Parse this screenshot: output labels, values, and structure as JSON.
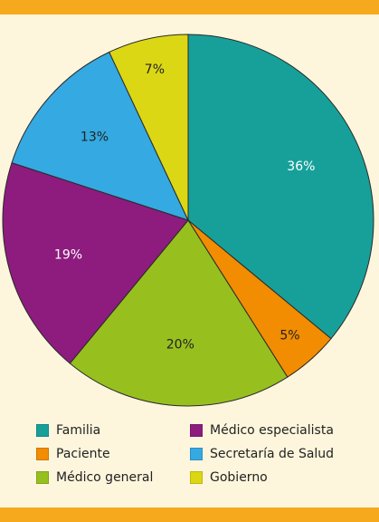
{
  "chart_data": {
    "type": "pie",
    "title": "",
    "start_angle_deg": 0,
    "direction": "clockwise",
    "slices": [
      {
        "name": "Familia",
        "value": 36,
        "label": "36%",
        "color": "#17a09a",
        "label_color": "#ffffff"
      },
      {
        "name": "Paciente",
        "value": 5,
        "label": "5%",
        "color": "#f28c00",
        "label_color": "#222222"
      },
      {
        "name": "Médico general",
        "value": 20,
        "label": "20%",
        "color": "#97c01f",
        "label_color": "#222222"
      },
      {
        "name": "Médico especialista",
        "value": 19,
        "label": "19%",
        "color": "#8d1c7e",
        "label_color": "#ffffff"
      },
      {
        "name": "Secretaría de Salud",
        "value": 13,
        "label": "13%",
        "color": "#35a9e1",
        "label_color": "#222222"
      },
      {
        "name": "Gobierno",
        "value": 7,
        "label": "7%",
        "color": "#dcd715",
        "label_color": "#222222"
      }
    ],
    "legend_placement": "bottom"
  },
  "legend": {
    "items": [
      {
        "label": "Familia",
        "color": "#17a09a"
      },
      {
        "label": "Médico especialista",
        "color": "#8d1c7e"
      },
      {
        "label": "Paciente",
        "color": "#f28c00"
      },
      {
        "label": "Secretaría de Salud",
        "color": "#35a9e1"
      },
      {
        "label": "Médico general",
        "color": "#97c01f"
      },
      {
        "label": "Gobierno",
        "color": "#dcd715"
      }
    ]
  },
  "colors": {
    "background": "#fdf6dc",
    "accent_bar": "#f6a91d"
  }
}
